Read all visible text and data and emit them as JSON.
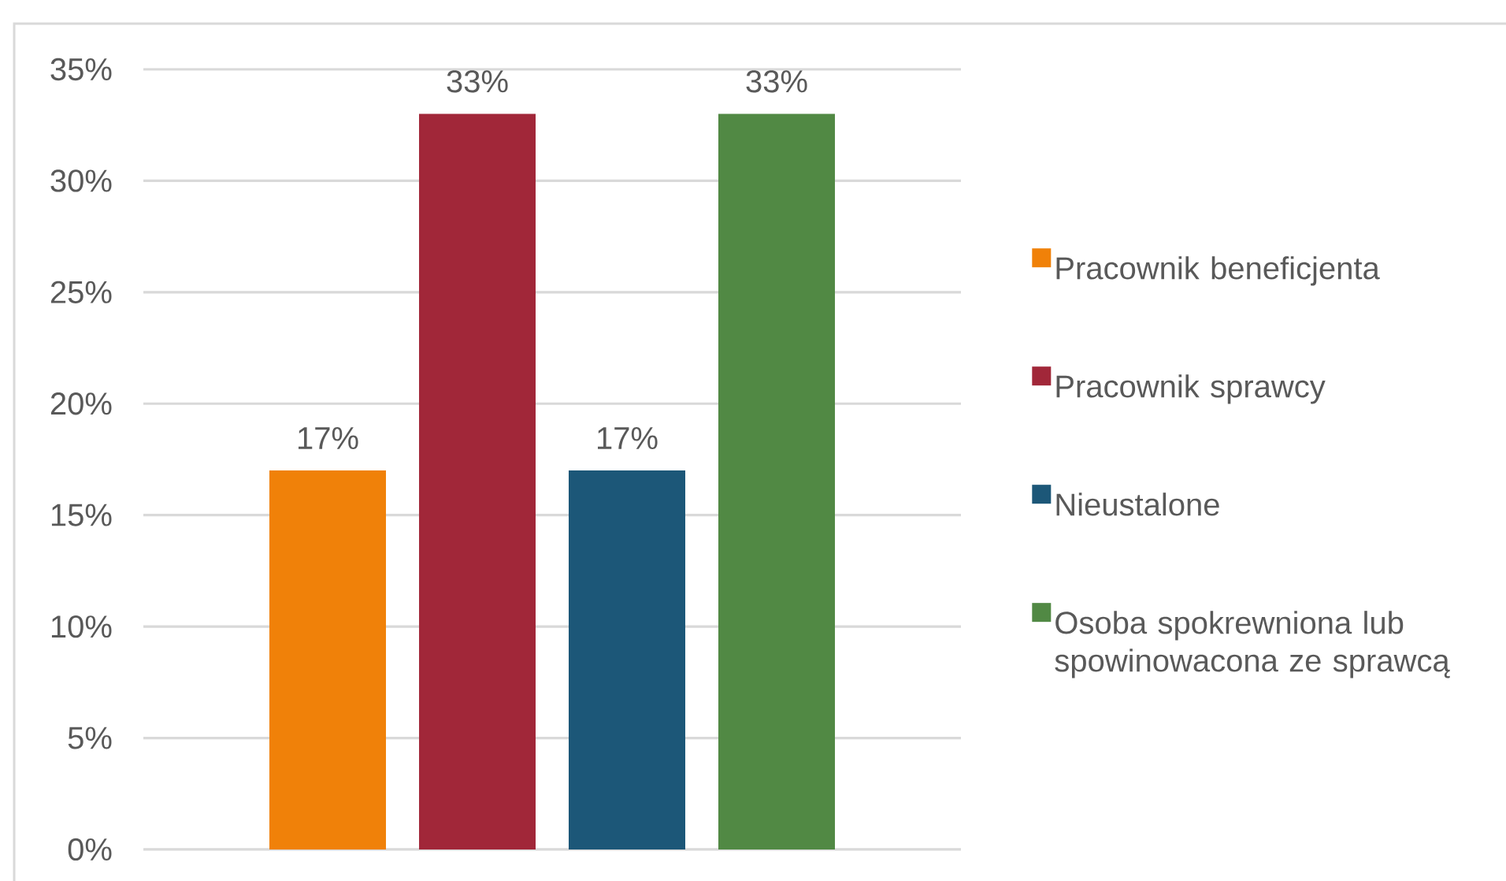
{
  "chart_data": {
    "type": "bar",
    "categories": [
      null
    ],
    "series": [
      {
        "name": "Pracownik beneficjenta",
        "color": "#f08109",
        "values": [
          17
        ],
        "value_labels": [
          "17%"
        ]
      },
      {
        "name": "Pracownik sprawcy",
        "color": "#a12739",
        "values": [
          33
        ],
        "value_labels": [
          "33%"
        ]
      },
      {
        "name": "Nieustalone",
        "color": "#1c5778",
        "values": [
          17
        ],
        "value_labels": [
          "17%"
        ]
      },
      {
        "name": "Osoba spokrewniona lub spowinowacona ze sprawcą",
        "color": "#518944",
        "values": [
          33
        ],
        "value_labels": [
          "33%"
        ]
      }
    ],
    "ylim": [
      0,
      35
    ],
    "yticks": [
      {
        "value": 0,
        "label": "0%"
      },
      {
        "value": 5,
        "label": "5%"
      },
      {
        "value": 10,
        "label": "10%"
      },
      {
        "value": 15,
        "label": "15%"
      },
      {
        "value": 20,
        "label": "20%"
      },
      {
        "value": 25,
        "label": "25%"
      },
      {
        "value": 30,
        "label": "30%"
      },
      {
        "value": 35,
        "label": "35%"
      }
    ],
    "grid": "y",
    "legend": "right"
  }
}
